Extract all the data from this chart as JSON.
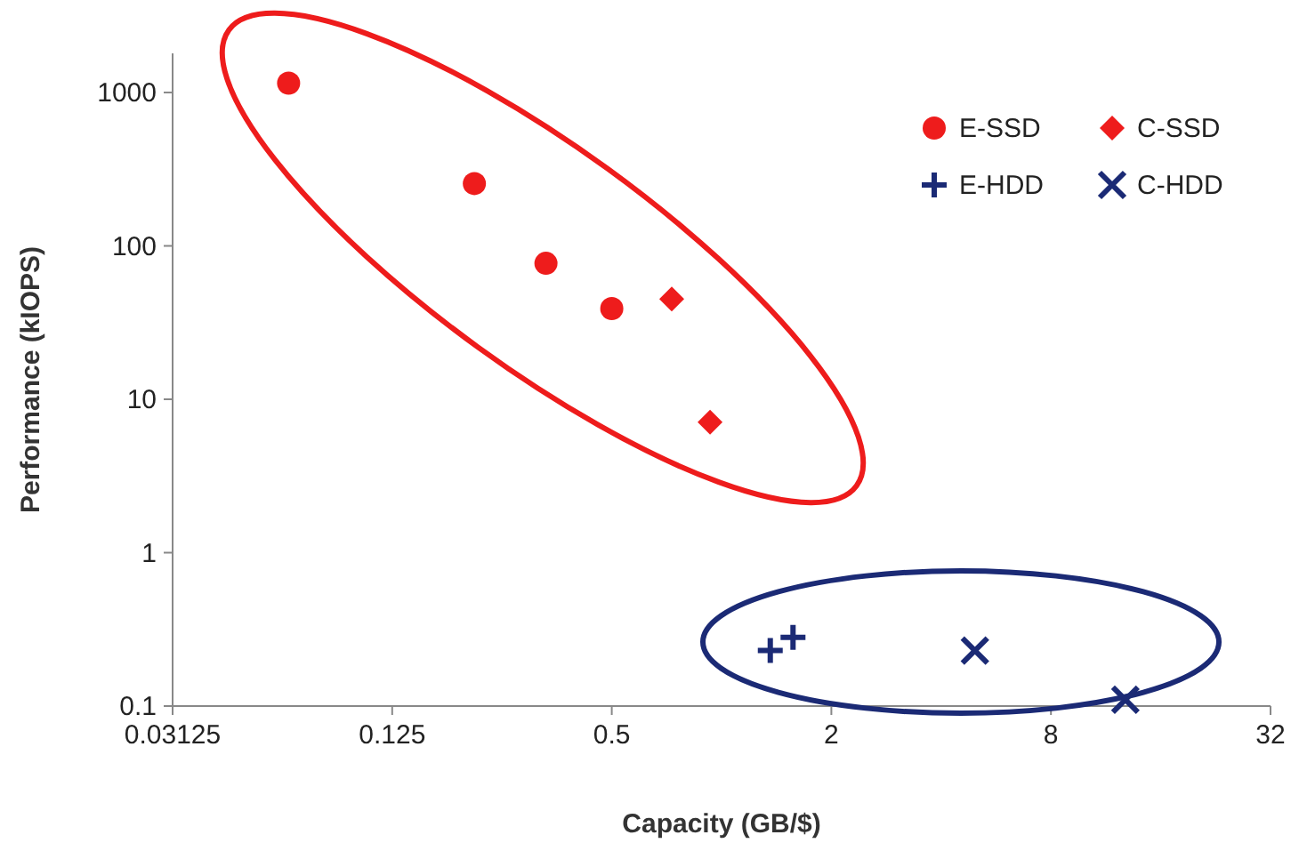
{
  "chart_data": {
    "type": "scatter",
    "xlabel": "Capacity (GB/$)",
    "ylabel": "Performance (kIOPS)",
    "log": "xy",
    "xlim": [
      0.03125,
      32
    ],
    "ylim": [
      0.1,
      1800
    ],
    "xticks": [
      0.03125,
      0.125,
      0.5,
      2,
      8,
      32
    ],
    "yticks": [
      0.1,
      1,
      10,
      100,
      1000
    ],
    "grid": false,
    "legend": "top right",
    "series": [
      {
        "name": "E-SSD",
        "color": "#ee1c1c",
        "marker": "circle",
        "x": [
          0.065,
          0.21,
          0.33,
          0.5
        ],
        "values": [
          1150,
          255,
          77,
          39
        ]
      },
      {
        "name": "C-SSD",
        "color": "#ee1c1c",
        "marker": "diamond",
        "x": [
          0.73,
          0.93
        ],
        "values": [
          45,
          7.1
        ]
      },
      {
        "name": "E-HDD",
        "color": "#1b2a75",
        "marker": "plus",
        "x": [
          1.36,
          1.57
        ],
        "values": [
          0.23,
          0.28
        ]
      },
      {
        "name": "C-HDD",
        "color": "#1b2a75",
        "marker": "cross",
        "x": [
          4.95,
          12.8
        ],
        "values": [
          0.23,
          0.11
        ]
      }
    ]
  }
}
